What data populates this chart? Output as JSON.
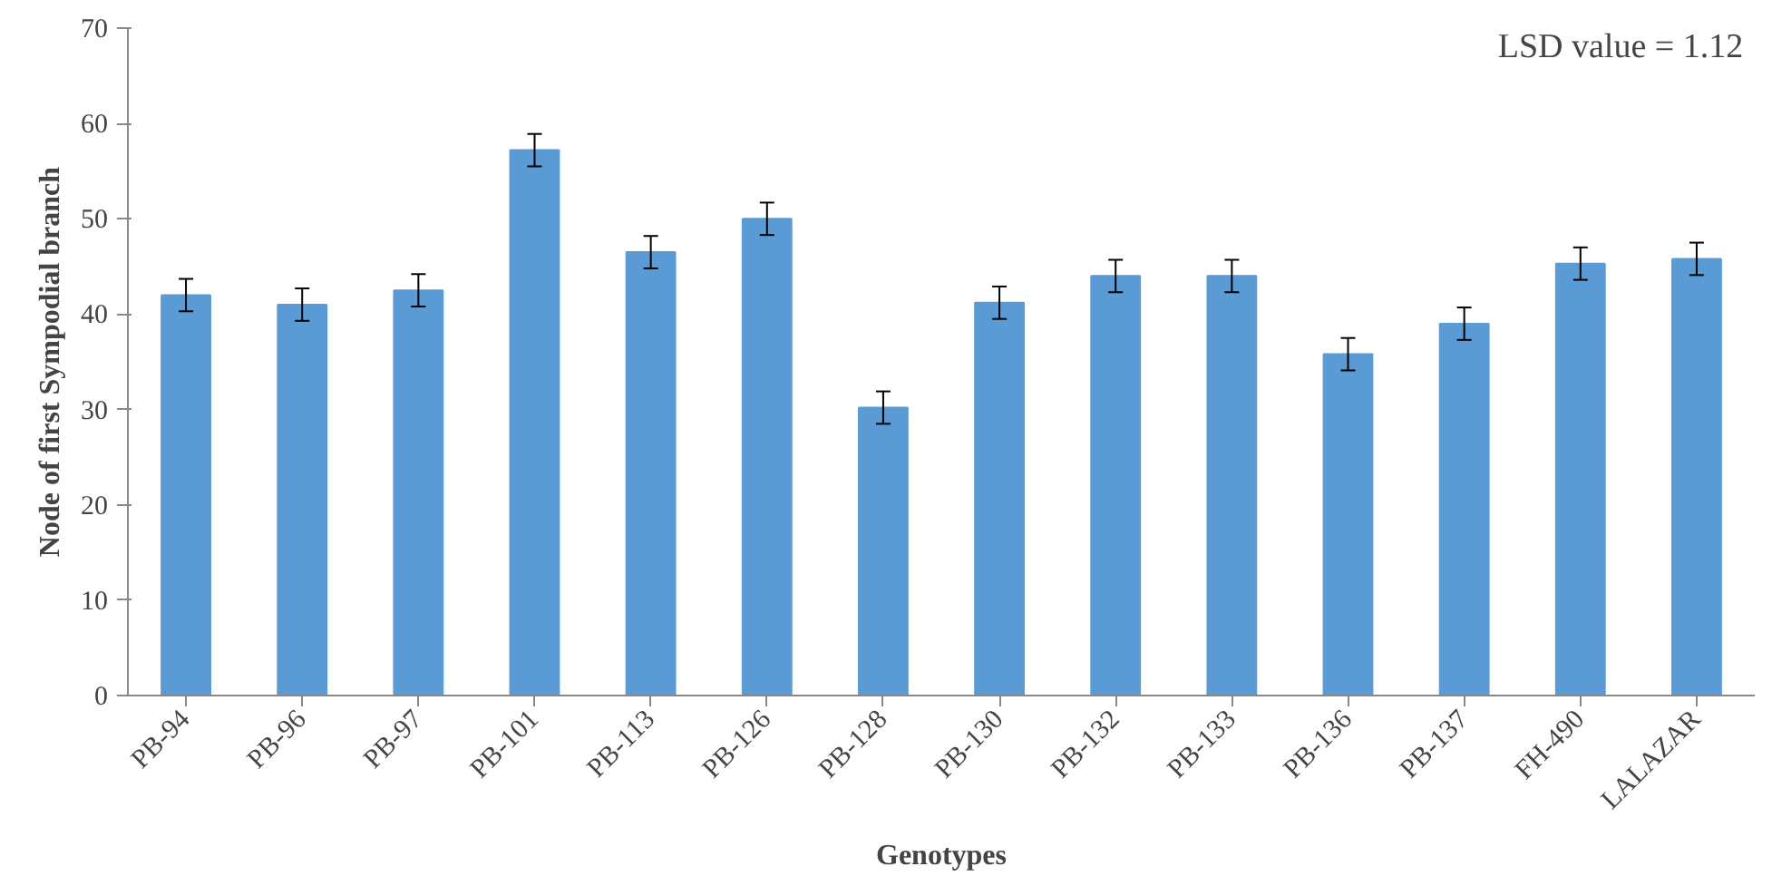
{
  "chart_data": {
    "type": "bar",
    "xlabel": "Genotypes",
    "ylabel": "Node of first Sympodial branch",
    "categories": [
      "PB-94",
      "PB-96",
      "PB-97",
      "PB-101",
      "PB-113",
      "PB-126",
      "PB-128",
      "PB-130",
      "PB-132",
      "PB-133",
      "PB-136",
      "PB-137",
      "FH-490",
      "LALAZAR"
    ],
    "values": [
      42,
      41,
      42.5,
      57.2,
      46.5,
      50,
      30.2,
      41.2,
      44,
      44,
      35.8,
      39,
      45.3,
      45.8
    ],
    "errors": [
      1.7,
      1.7,
      1.7,
      1.7,
      1.7,
      1.7,
      1.7,
      1.7,
      1.7,
      1.7,
      1.7,
      1.7,
      1.7,
      1.7
    ],
    "color": "#5b9bd5",
    "ylim": [
      0,
      70
    ],
    "yticks": [
      0,
      10,
      20,
      30,
      40,
      50,
      60,
      70
    ],
    "grid": false,
    "annotations": [
      "LSD value = 1.12"
    ]
  }
}
